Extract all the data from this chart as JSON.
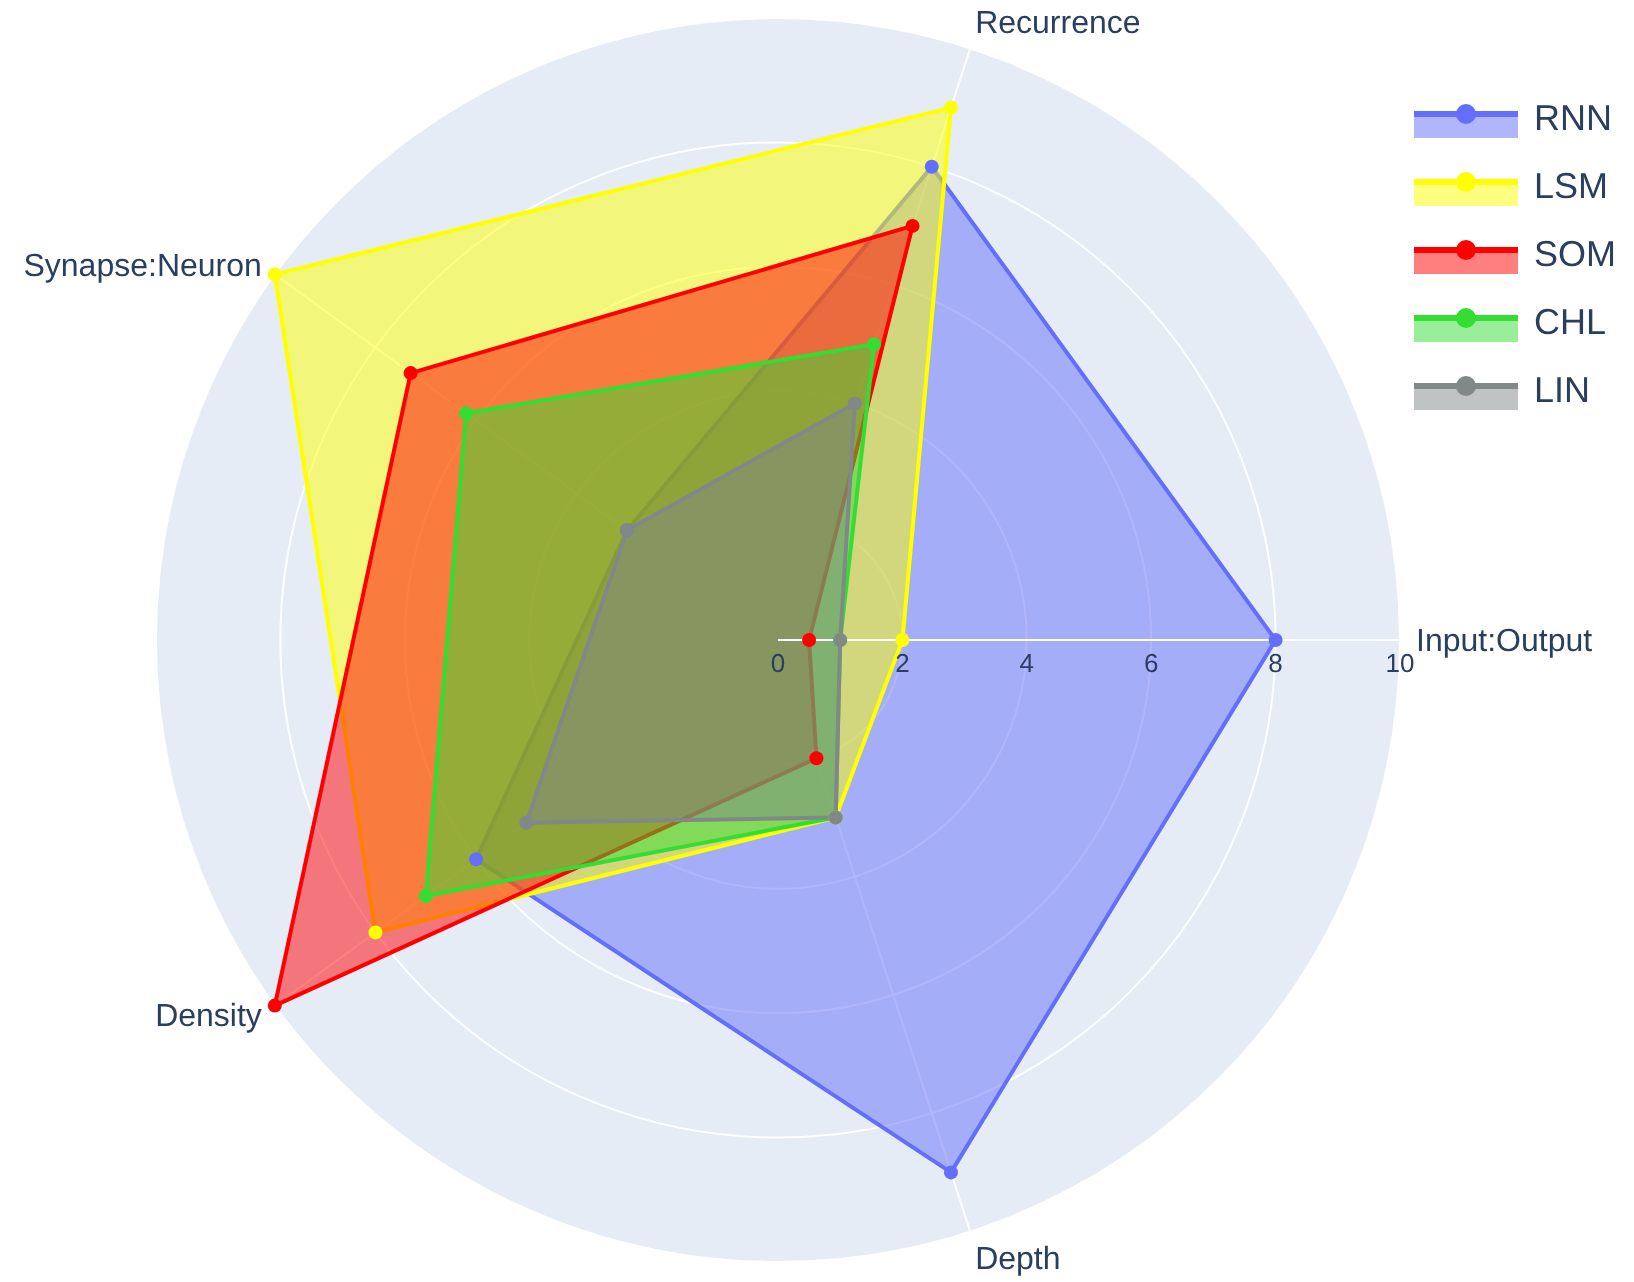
{
  "chart_data": {
    "type": "radar",
    "categories": [
      "Recurrence",
      "Input:Output",
      "Depth",
      "Density",
      "Synapse:Neuron"
    ],
    "series": [
      {
        "name": "RNN",
        "color": "#636efa",
        "values": [
          8,
          8,
          9,
          6,
          3
        ]
      },
      {
        "name": "LSM",
        "color": "#ffff00",
        "values": [
          9,
          2,
          3,
          8,
          10
        ]
      },
      {
        "name": "SOM",
        "color": "#ff0000",
        "values": [
          7,
          0.5,
          2,
          10,
          7.3
        ]
      },
      {
        "name": "CHL",
        "color": "#33dd33",
        "values": [
          5,
          1,
          3,
          7,
          6.2
        ]
      },
      {
        "name": "LIN",
        "color": "#808888",
        "values": [
          4,
          1,
          3,
          5,
          3
        ]
      }
    ],
    "ylim": [
      0,
      10
    ],
    "yticks": [
      0,
      2,
      4,
      6,
      8,
      10
    ],
    "grid": true,
    "legend": "top right",
    "marker": "circle"
  }
}
